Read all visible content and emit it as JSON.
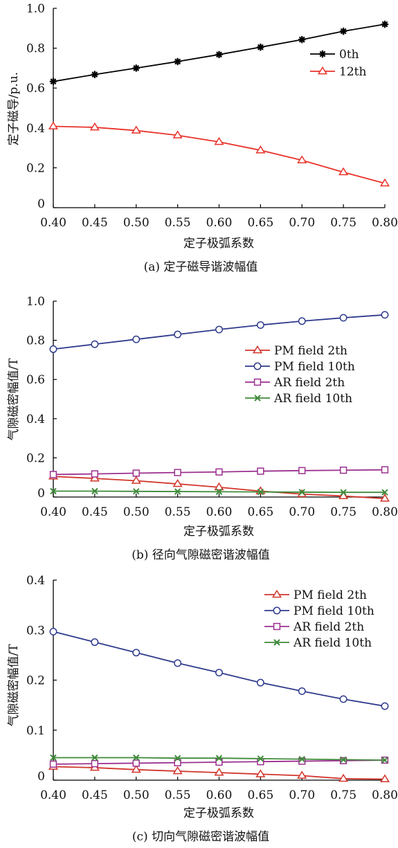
{
  "chart_data": [
    {
      "type": "line",
      "caption": "(a) 定子磁导谐波幅值",
      "xlabel": "定子极弧系数",
      "ylabel": "定子磁导/p.u.",
      "x": [
        0.4,
        0.45,
        0.5,
        0.55,
        0.6,
        0.65,
        0.7,
        0.75,
        0.8
      ],
      "xticks": [
        "0.40",
        "0.45",
        "0.50",
        "0.55",
        "0.60",
        "0.65",
        "0.70",
        "0.75",
        "0.80"
      ],
      "ylim": [
        0,
        1.0
      ],
      "yticks": [
        {
          "v": 0,
          "t": "0"
        },
        {
          "v": 0.2,
          "t": "0.2"
        },
        {
          "v": 0.4,
          "t": "0.4"
        },
        {
          "v": 0.6,
          "t": "0.6"
        },
        {
          "v": 0.8,
          "t": "0.8"
        },
        {
          "v": 1.0,
          "t": "1.0"
        }
      ],
      "grid": false,
      "legend": "right",
      "series": [
        {
          "name": "0th",
          "color": "#000000",
          "marker": "star",
          "values": [
            0.633,
            0.668,
            0.7,
            0.733,
            0.768,
            0.805,
            0.843,
            0.885,
            0.92
          ]
        },
        {
          "name": "12th",
          "color": "#e8322a",
          "marker": "triangle",
          "values": [
            0.408,
            0.403,
            0.387,
            0.363,
            0.33,
            0.288,
            0.238,
            0.178,
            0.122
          ]
        }
      ]
    },
    {
      "type": "line",
      "caption": "(b) 径向气隙磁密谐波幅值",
      "xlabel": "定子极弧系数",
      "ylabel": "气隙磁密幅值/T",
      "x": [
        0.4,
        0.45,
        0.5,
        0.55,
        0.6,
        0.65,
        0.7,
        0.75,
        0.8
      ],
      "xticks": [
        "0.40",
        "0.45",
        "0.50",
        "0.55",
        "0.60",
        "0.65",
        "0.70",
        "0.75",
        "0.80"
      ],
      "ylim": [
        0,
        1.0
      ],
      "yticks": [
        {
          "v": 0,
          "t": "0"
        },
        {
          "v": 0.2,
          "t": "0.2"
        },
        {
          "v": 0.4,
          "t": "0.4"
        },
        {
          "v": 0.6,
          "t": "0.6"
        },
        {
          "v": 0.8,
          "t": "0.8"
        },
        {
          "v": 1.0,
          "t": "1.0"
        }
      ],
      "grid": false,
      "legend": "right",
      "series": [
        {
          "name": "PM field 2th",
          "color": "#d1352b",
          "marker": "triangle",
          "values": [
            0.105,
            0.095,
            0.083,
            0.067,
            0.05,
            0.03,
            0.015,
            0.005,
            -0.008
          ]
        },
        {
          "name": "PM field 10th",
          "color": "#2e3a8c",
          "marker": "circle",
          "values": [
            0.755,
            0.78,
            0.805,
            0.83,
            0.855,
            0.878,
            0.898,
            0.915,
            0.93
          ]
        },
        {
          "name": "AR field 2th",
          "color": "#9b2f8f",
          "marker": "square",
          "values": [
            0.115,
            0.118,
            0.122,
            0.125,
            0.128,
            0.132,
            0.135,
            0.137,
            0.139
          ]
        },
        {
          "name": "AR field 10th",
          "color": "#3f8a3a",
          "marker": "x",
          "values": [
            0.03,
            0.03,
            0.029,
            0.028,
            0.027,
            0.026,
            0.025,
            0.024,
            0.024
          ]
        }
      ]
    },
    {
      "type": "line",
      "caption": "(c) 切向气隙磁密谐波幅值",
      "xlabel": "定子极弧系数",
      "ylabel": "气隙磁密幅值/T",
      "x": [
        0.4,
        0.45,
        0.5,
        0.55,
        0.6,
        0.65,
        0.7,
        0.75,
        0.8
      ],
      "xticks": [
        "0.40",
        "0.45",
        "0.50",
        "0.55",
        "0.60",
        "0.65",
        "0.70",
        "0.75",
        "0.80"
      ],
      "ylim": [
        0,
        0.4
      ],
      "yticks": [
        {
          "v": 0,
          "t": "0"
        },
        {
          "v": 0.1,
          "t": "0.1"
        },
        {
          "v": 0.2,
          "t": "0.2"
        },
        {
          "v": 0.3,
          "t": "0.3"
        },
        {
          "v": 0.4,
          "t": "0.4"
        }
      ],
      "grid": false,
      "legend": "top-right",
      "series": [
        {
          "name": "PM field 2th",
          "color": "#d1352b",
          "marker": "triangle",
          "values": [
            0.027,
            0.025,
            0.021,
            0.018,
            0.015,
            0.012,
            0.009,
            0.003,
            0.002
          ]
        },
        {
          "name": "PM field 10th",
          "color": "#2e3a8c",
          "marker": "circle",
          "values": [
            0.297,
            0.276,
            0.255,
            0.234,
            0.215,
            0.195,
            0.178,
            0.162,
            0.148
          ]
        },
        {
          "name": "AR field 2th",
          "color": "#9b2f8f",
          "marker": "square",
          "values": [
            0.032,
            0.033,
            0.034,
            0.035,
            0.036,
            0.037,
            0.038,
            0.039,
            0.04
          ]
        },
        {
          "name": "AR field 10th",
          "color": "#3f8a3a",
          "marker": "x",
          "values": [
            0.045,
            0.045,
            0.045,
            0.044,
            0.044,
            0.043,
            0.042,
            0.041,
            0.04
          ]
        }
      ]
    }
  ]
}
